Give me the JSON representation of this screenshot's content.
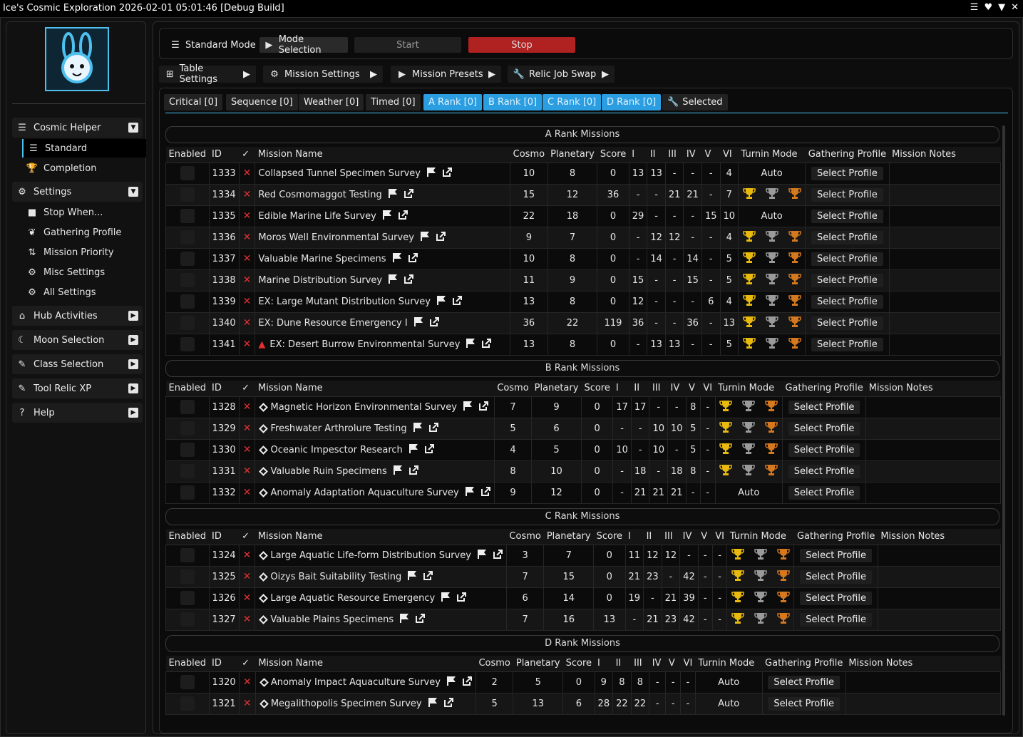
{
  "window": {
    "title": "Ice's Cosmic Exploration 2026-02-01 05:01:46 [Debug Build]"
  },
  "sidebar": {
    "logo_name": "bunny-logo",
    "categories": [
      {
        "label": "Cosmic Helper",
        "icon": "list-icon"
      },
      {
        "label": "Settings",
        "icon": "gear-icon"
      },
      {
        "label": "Hub Activities",
        "icon": "home-icon"
      },
      {
        "label": "Moon Selection",
        "icon": "moon-icon"
      },
      {
        "label": "Class Selection",
        "icon": "tool-icon"
      },
      {
        "label": "Tool Relic XP",
        "icon": "tool-icon"
      },
      {
        "label": "Help",
        "icon": "help-icon"
      }
    ],
    "helper_items": [
      {
        "label": "Standard"
      },
      {
        "label": "Completion"
      }
    ],
    "settings_items": [
      {
        "label": "Stop When..."
      },
      {
        "label": "Gathering Profile"
      },
      {
        "label": "Mission Priority"
      },
      {
        "label": "Misc Settings"
      },
      {
        "label": "All Settings"
      }
    ]
  },
  "toolbar": {
    "mode_label": "Standard Mode",
    "mode_select": "Mode Selection",
    "start": "Start",
    "stop": "Stop"
  },
  "menus": {
    "table": "Table Settings",
    "mission": "Mission Settings",
    "presets": "Mission Presets",
    "relic": "Relic Job Swap"
  },
  "tabs": [
    "Critical [0]",
    "Sequence [0]",
    "Weather [0]",
    "Timed [0]",
    "A Rank [0]",
    "B Rank [0]",
    "C Rank [0]",
    "D Rank [0]",
    "Selected"
  ],
  "colors": {
    "accent": "#4ec0ef",
    "stop": "#b02121",
    "gold": "#e8b90f",
    "silver": "#9a9a9a",
    "bronze": "#d5781e",
    "x": "#e03030"
  },
  "headers": [
    "Enabled",
    "ID",
    "✓",
    "Mission Name",
    "Cosmo",
    "Planetary",
    "Score",
    "I",
    "II",
    "III",
    "IV",
    "V",
    "VI",
    "Turnin Mode",
    "Gathering Profile",
    "Mission Notes"
  ],
  "select_label": "Select Profile",
  "sections": [
    {
      "title": "A Rank Missions",
      "rows": [
        {
          "id": "1333",
          "name": "Collapsed Tunnel Specimen Survey",
          "cosmo": "10",
          "planet": "8",
          "score": "0",
          "c": [
            "13",
            "13",
            "-",
            "-",
            "-",
            "4"
          ],
          "turnin": "Auto"
        },
        {
          "id": "1334",
          "name": "Red Cosmomaggot Testing",
          "cosmo": "15",
          "planet": "12",
          "score": "36",
          "c": [
            "-",
            "-",
            "21",
            "21",
            "-",
            "7"
          ],
          "turnin": "trophies"
        },
        {
          "id": "1335",
          "name": "Edible Marine Life Survey",
          "cosmo": "22",
          "planet": "18",
          "score": "0",
          "c": [
            "29",
            "-",
            "-",
            "-",
            "15",
            "10"
          ],
          "turnin": "Auto"
        },
        {
          "id": "1336",
          "name": "Moros Well Environmental Survey",
          "cosmo": "9",
          "planet": "7",
          "score": "0",
          "c": [
            "-",
            "12",
            "12",
            "-",
            "-",
            "4"
          ],
          "turnin": "trophies"
        },
        {
          "id": "1337",
          "name": "Valuable Marine Specimens",
          "cosmo": "10",
          "planet": "8",
          "score": "0",
          "c": [
            "-",
            "14",
            "-",
            "14",
            "-",
            "5"
          ],
          "turnin": "trophies"
        },
        {
          "id": "1338",
          "name": "Marine Distribution Survey",
          "cosmo": "11",
          "planet": "9",
          "score": "0",
          "c": [
            "15",
            "-",
            "-",
            "15",
            "-",
            "5"
          ],
          "turnin": "trophies"
        },
        {
          "id": "1339",
          "name": "EX: Large Mutant Distribution Survey",
          "cosmo": "13",
          "planet": "8",
          "score": "0",
          "c": [
            "12",
            "-",
            "-",
            "-",
            "6",
            "4"
          ],
          "turnin": "trophies"
        },
        {
          "id": "1340",
          "name": "EX: Dune Resource Emergency I",
          "cosmo": "36",
          "planet": "22",
          "score": "119",
          "c": [
            "36",
            "-",
            "-",
            "36",
            "-",
            "13"
          ],
          "turnin": "trophies"
        },
        {
          "id": "1341",
          "name": "EX: Desert Burrow Environmental Survey",
          "cosmo": "13",
          "planet": "8",
          "score": "0",
          "c": [
            "-",
            "13",
            "13",
            "-",
            "-",
            "5"
          ],
          "turnin": "trophies",
          "warn": true
        }
      ]
    },
    {
      "title": "B Rank Missions",
      "rows": [
        {
          "id": "1328",
          "name": "Magnetic Horizon Environmental Survey",
          "cosmo": "7",
          "planet": "9",
          "score": "0",
          "c": [
            "17",
            "17",
            "-",
            "-",
            "8",
            "-"
          ],
          "turnin": "trophies"
        },
        {
          "id": "1329",
          "name": "Freshwater Arthrolure Testing",
          "cosmo": "5",
          "planet": "6",
          "score": "0",
          "c": [
            "-",
            "-",
            "10",
            "10",
            "5",
            "-"
          ],
          "turnin": "trophies"
        },
        {
          "id": "1330",
          "name": "Oceanic Impesctor Research",
          "cosmo": "4",
          "planet": "5",
          "score": "0",
          "c": [
            "10",
            "-",
            "10",
            "-",
            "5",
            "-"
          ],
          "turnin": "trophies"
        },
        {
          "id": "1331",
          "name": "Valuable Ruin Specimens",
          "cosmo": "8",
          "planet": "10",
          "score": "0",
          "c": [
            "-",
            "18",
            "-",
            "18",
            "8",
            "-"
          ],
          "turnin": "trophies"
        },
        {
          "id": "1332",
          "name": "Anomaly Adaptation Aquaculture Survey",
          "cosmo": "9",
          "planet": "12",
          "score": "0",
          "c": [
            "-",
            "21",
            "21",
            "21",
            "-",
            "-"
          ],
          "turnin": "Auto"
        }
      ]
    },
    {
      "title": "C Rank Missions",
      "rows": [
        {
          "id": "1324",
          "name": "Large Aquatic Life-form Distribution Survey",
          "cosmo": "3",
          "planet": "7",
          "score": "0",
          "c": [
            "11",
            "12",
            "12",
            "-",
            "-",
            "-"
          ],
          "turnin": "trophies"
        },
        {
          "id": "1325",
          "name": "Oizys Bait Suitability Testing",
          "cosmo": "7",
          "planet": "15",
          "score": "0",
          "c": [
            "21",
            "23",
            "-",
            "42",
            "-",
            "-"
          ],
          "turnin": "trophies"
        },
        {
          "id": "1326",
          "name": "Large Aquatic Resource Emergency",
          "cosmo": "6",
          "planet": "14",
          "score": "0",
          "c": [
            "19",
            "-",
            "21",
            "39",
            "-",
            "-"
          ],
          "turnin": "trophies"
        },
        {
          "id": "1327",
          "name": "Valuable Plains Specimens",
          "cosmo": "7",
          "planet": "16",
          "score": "13",
          "c": [
            "-",
            "21",
            "23",
            "42",
            "-",
            "-"
          ],
          "turnin": "trophies"
        }
      ]
    },
    {
      "title": "D Rank Missions",
      "rows": [
        {
          "id": "1320",
          "name": "Anomaly Impact Aquaculture Survey",
          "cosmo": "2",
          "planet": "5",
          "score": "0",
          "c": [
            "9",
            "8",
            "8",
            "-",
            "-",
            "-"
          ],
          "turnin": "Auto"
        },
        {
          "id": "1321",
          "name": "Megalithopolis Specimen Survey",
          "cosmo": "5",
          "planet": "13",
          "score": "6",
          "c": [
            "28",
            "22",
            "22",
            "-",
            "-",
            "-"
          ],
          "turnin": "Auto"
        }
      ]
    }
  ]
}
